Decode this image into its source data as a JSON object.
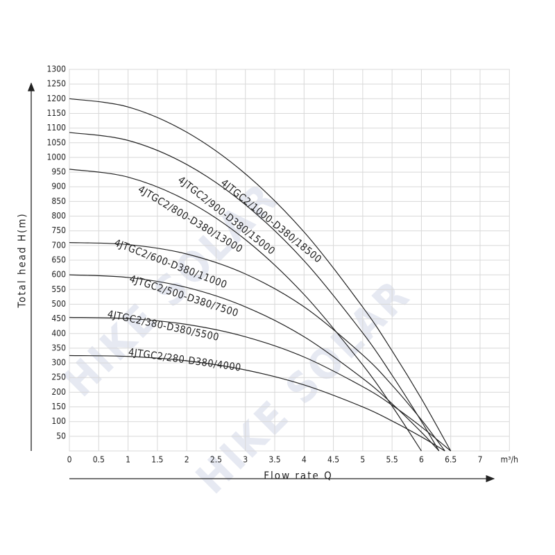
{
  "chart_data": {
    "type": "line",
    "x_label": "Flow rate Q",
    "y_label": "Total head H(m)",
    "x_unit": "m³/h",
    "watermark": "HIKE SOLAR",
    "xlim": [
      0,
      7.5
    ],
    "ylim": [
      0,
      1300
    ],
    "xticks": [
      0,
      0.5,
      1,
      1.5,
      2,
      2.5,
      3,
      3.5,
      4,
      4.5,
      5,
      5.5,
      6,
      6.5,
      7
    ],
    "yticks": [
      50,
      100,
      150,
      200,
      250,
      300,
      350,
      400,
      450,
      500,
      550,
      600,
      650,
      700,
      750,
      800,
      850,
      900,
      950,
      1000,
      1050,
      1100,
      1150,
      1200,
      1250,
      1300
    ],
    "grid": true,
    "color": "#222222",
    "series": [
      {
        "name": "4JTGC2/1000-D380/18500",
        "x": [
          0,
          1,
          2,
          3,
          4,
          5,
          5.5,
          6,
          6.5
        ],
        "values": [
          1200,
          1172,
          1086,
          944,
          746,
          490,
          341,
          178,
          0
        ]
      },
      {
        "name": "4JTGC2/900-D380/15000",
        "x": [
          0,
          1,
          2,
          3,
          4,
          5,
          5.5,
          6,
          6.3
        ],
        "values": [
          1085,
          1058,
          976,
          839,
          648,
          402,
          258,
          101,
          0
        ]
      },
      {
        "name": "4JTGC2/800-D380/13000",
        "x": [
          0,
          1,
          2,
          3,
          4,
          5,
          5.5,
          6
        ],
        "values": [
          960,
          933,
          853,
          720,
          533,
          293,
          153,
          0
        ]
      },
      {
        "name": "4JTGC2/600-D380/11000",
        "x": [
          0,
          1,
          2,
          3,
          4,
          5,
          5.5,
          6,
          6.4
        ],
        "values": [
          710,
          703,
          671,
          603,
          491,
          327,
          224,
          106,
          0
        ]
      },
      {
        "name": "4JTGC2/500-D380/7500",
        "x": [
          0,
          1,
          2,
          3,
          4,
          5,
          5.5,
          6,
          6.3
        ],
        "values": [
          600,
          591,
          557,
          491,
          389,
          247,
          161,
          64,
          0
        ]
      },
      {
        "name": "4JTGC2/380-D380/5500",
        "x": [
          0,
          1,
          2,
          3,
          4,
          5,
          5.5,
          6,
          6.5
        ],
        "values": [
          455,
          451,
          431,
          389,
          320,
          219,
          156,
          82,
          0
        ]
      },
      {
        "name": "4JTGC2/280-D380/4000",
        "x": [
          0,
          1,
          2,
          3,
          4,
          5,
          5.5,
          6,
          6.4
        ],
        "values": [
          325,
          322,
          307,
          276,
          225,
          150,
          102,
          48,
          0
        ]
      }
    ]
  }
}
